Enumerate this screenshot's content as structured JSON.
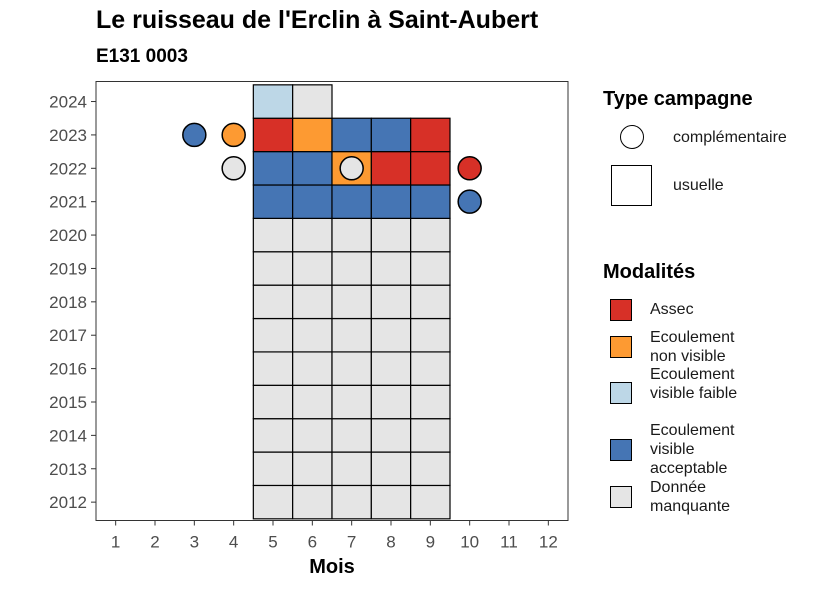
{
  "title": "Le ruisseau de l'Erclin à Saint-Aubert",
  "subtitle": "E131 0003",
  "chart_data": {
    "type": "heatmap",
    "xlabel": "Mois",
    "ylabel": "",
    "x_ticks": [
      "1",
      "2",
      "3",
      "4",
      "5",
      "6",
      "7",
      "8",
      "9",
      "10",
      "11",
      "12"
    ],
    "y_ticks": [
      "2012",
      "2013",
      "2014",
      "2015",
      "2016",
      "2017",
      "2018",
      "2019",
      "2020",
      "2021",
      "2022",
      "2023",
      "2024"
    ],
    "xlim": [
      0.5,
      12.5
    ],
    "ylim": [
      2011.45,
      2024.6
    ],
    "grid": false,
    "legend_position": "right",
    "colors": {
      "Assec": "#d73027",
      "Ecoulement non visible": "#fd9a32",
      "Ecoulement visible faible": "#bdd7e7",
      "Ecoulement visible acceptable": "#4575b4",
      "Donnée manquante": "#e5e5e5"
    },
    "usuelle_cells": [
      {
        "year": 2012,
        "months": [
          5,
          6,
          7,
          8,
          9
        ],
        "values": [
          "Donnée manquante",
          "Donnée manquante",
          "Donnée manquante",
          "Donnée manquante",
          "Donnée manquante"
        ]
      },
      {
        "year": 2013,
        "months": [
          5,
          6,
          7,
          8,
          9
        ],
        "values": [
          "Donnée manquante",
          "Donnée manquante",
          "Donnée manquante",
          "Donnée manquante",
          "Donnée manquante"
        ]
      },
      {
        "year": 2014,
        "months": [
          5,
          6,
          7,
          8,
          9
        ],
        "values": [
          "Donnée manquante",
          "Donnée manquante",
          "Donnée manquante",
          "Donnée manquante",
          "Donnée manquante"
        ]
      },
      {
        "year": 2015,
        "months": [
          5,
          6,
          7,
          8,
          9
        ],
        "values": [
          "Donnée manquante",
          "Donnée manquante",
          "Donnée manquante",
          "Donnée manquante",
          "Donnée manquante"
        ]
      },
      {
        "year": 2016,
        "months": [
          5,
          6,
          7,
          8,
          9
        ],
        "values": [
          "Donnée manquante",
          "Donnée manquante",
          "Donnée manquante",
          "Donnée manquante",
          "Donnée manquante"
        ]
      },
      {
        "year": 2017,
        "months": [
          5,
          6,
          7,
          8,
          9
        ],
        "values": [
          "Donnée manquante",
          "Donnée manquante",
          "Donnée manquante",
          "Donnée manquante",
          "Donnée manquante"
        ]
      },
      {
        "year": 2018,
        "months": [
          5,
          6,
          7,
          8,
          9
        ],
        "values": [
          "Donnée manquante",
          "Donnée manquante",
          "Donnée manquante",
          "Donnée manquante",
          "Donnée manquante"
        ]
      },
      {
        "year": 2019,
        "months": [
          5,
          6,
          7,
          8,
          9
        ],
        "values": [
          "Donnée manquante",
          "Donnée manquante",
          "Donnée manquante",
          "Donnée manquante",
          "Donnée manquante"
        ]
      },
      {
        "year": 2020,
        "months": [
          5,
          6,
          7,
          8,
          9
        ],
        "values": [
          "Donnée manquante",
          "Donnée manquante",
          "Donnée manquante",
          "Donnée manquante",
          "Donnée manquante"
        ]
      },
      {
        "year": 2021,
        "months": [
          5,
          6,
          7,
          8,
          9
        ],
        "values": [
          "Ecoulement visible acceptable",
          "Ecoulement visible acceptable",
          "Ecoulement visible acceptable",
          "Ecoulement visible acceptable",
          "Ecoulement visible acceptable"
        ]
      },
      {
        "year": 2022,
        "months": [
          5,
          6,
          7,
          8,
          9
        ],
        "values": [
          "Ecoulement visible acceptable",
          "Ecoulement visible acceptable",
          "Ecoulement non visible",
          "Assec",
          "Assec"
        ]
      },
      {
        "year": 2023,
        "months": [
          5,
          6,
          7,
          8,
          9
        ],
        "values": [
          "Assec",
          "Ecoulement non visible",
          "Ecoulement visible acceptable",
          "Ecoulement visible acceptable",
          "Assec"
        ]
      },
      {
        "year": 2024,
        "months": [
          5,
          6
        ],
        "values": [
          "Ecoulement visible faible",
          "Donnée manquante"
        ]
      }
    ],
    "complementaire_points": [
      {
        "year": 2023,
        "month": 3,
        "value": "Ecoulement visible acceptable"
      },
      {
        "year": 2023,
        "month": 4,
        "value": "Ecoulement non visible"
      },
      {
        "year": 2022,
        "month": 4,
        "value": "Donnée manquante"
      },
      {
        "year": 2022,
        "month": 7,
        "value": "Donnée manquante"
      },
      {
        "year": 2022,
        "month": 10,
        "value": "Assec"
      },
      {
        "year": 2021,
        "month": 10,
        "value": "Ecoulement visible acceptable"
      }
    ]
  },
  "legend": {
    "type_title": "Type campagne",
    "type_items": [
      {
        "label": "complémentaire",
        "shape": "circle"
      },
      {
        "label": "usuelle",
        "shape": "square"
      }
    ],
    "modalites_title": "Modalités",
    "modalites_items": [
      {
        "label": "Assec",
        "color": "#d73027"
      },
      {
        "label": "Ecoulement non visible",
        "color": "#fd9a32"
      },
      {
        "label": "Ecoulement visible faible",
        "color": "#bdd7e7"
      },
      {
        "label": "Ecoulement visible acceptable",
        "color": "#4575b4"
      },
      {
        "label": "Donnée manquante",
        "color": "#e5e5e5"
      }
    ]
  }
}
